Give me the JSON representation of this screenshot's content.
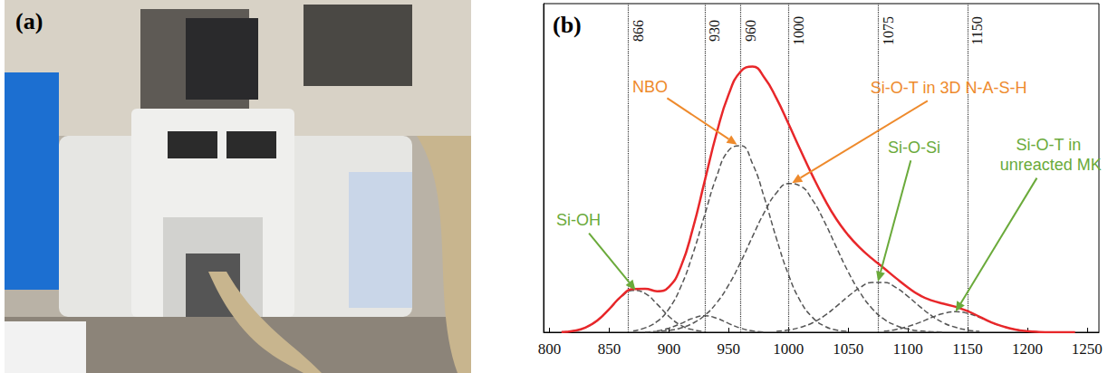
{
  "photo_panel": {
    "label": "(a)"
  },
  "chart_data": {
    "type": "line",
    "panel_label": "(b)",
    "xlim": [
      795,
      1260
    ],
    "xticks": [
      800,
      850,
      900,
      950,
      1000,
      1050,
      1100,
      1150,
      1200,
      1250
    ],
    "ylim": [
      0,
      1.2
    ],
    "tick_labels": "x",
    "grid": false,
    "markers": [
      866,
      930,
      960,
      1000,
      1075,
      1150
    ],
    "series": [
      {
        "type": "line",
        "color": "#e8272a",
        "line_style": "solid",
        "x": [
          810,
          820,
          830,
          840,
          850,
          860,
          870,
          880,
          890,
          900,
          910,
          920,
          930,
          940,
          950,
          960,
          970,
          980,
          990,
          1000,
          1010,
          1020,
          1030,
          1040,
          1050,
          1060,
          1070,
          1080,
          1090,
          1100,
          1110,
          1120,
          1130,
          1140,
          1150,
          1160,
          1170,
          1180,
          1190,
          1200,
          1210,
          1220,
          1230,
          1240
        ],
        "values": [
          0.001,
          0.005,
          0.017,
          0.043,
          0.085,
          0.131,
          0.158,
          0.159,
          0.15,
          0.166,
          0.24,
          0.379,
          0.554,
          0.729,
          0.869,
          0.952,
          0.97,
          0.929,
          0.854,
          0.762,
          0.666,
          0.573,
          0.488,
          0.414,
          0.355,
          0.308,
          0.269,
          0.234,
          0.198,
          0.164,
          0.135,
          0.116,
          0.104,
          0.093,
          0.077,
          0.057,
          0.036,
          0.021,
          0.01,
          0.004,
          0.001,
          0,
          0,
          0
        ]
      },
      {
        "type": "line",
        "color": "#555555",
        "line_style": "dashed",
        "x": [
          810,
          820,
          830,
          840,
          850,
          860,
          870,
          880,
          890,
          900,
          910,
          920,
          930
        ],
        "values": [
          0.001,
          0.005,
          0.017,
          0.043,
          0.084,
          0.129,
          0.153,
          0.142,
          0.103,
          0.058,
          0.025,
          0.009,
          0.002
        ]
      },
      {
        "type": "line",
        "color": "#555555",
        "line_style": "dashed",
        "x": [
          890,
          900,
          910,
          920,
          930,
          940,
          950,
          960,
          970,
          980
        ],
        "values": [
          0.005,
          0.015,
          0.032,
          0.051,
          0.06,
          0.051,
          0.032,
          0.015,
          0.005,
          0.001
        ]
      },
      {
        "type": "line",
        "color": "#555555",
        "line_style": "dashed",
        "x": [
          870,
          880,
          890,
          900,
          910,
          920,
          930,
          940,
          950,
          960,
          970,
          980,
          990,
          1000,
          1010,
          1020,
          1030,
          1040,
          1050
        ],
        "values": [
          0.005,
          0.016,
          0.039,
          0.086,
          0.167,
          0.286,
          0.43,
          0.57,
          0.664,
          0.681,
          0.615,
          0.489,
          0.342,
          0.211,
          0.114,
          0.055,
          0.023,
          0.008,
          0.003
        ]
      },
      {
        "type": "line",
        "color": "#555555",
        "line_style": "dashed",
        "x": [
          880,
          890,
          900,
          910,
          920,
          930,
          940,
          950,
          960,
          970,
          980,
          990,
          1000,
          1010,
          1020,
          1030,
          1040,
          1050,
          1060,
          1070,
          1080,
          1090,
          1100,
          1110,
          1120,
          1130
        ],
        "values": [
          0.001,
          0.003,
          0.007,
          0.016,
          0.033,
          0.062,
          0.108,
          0.173,
          0.256,
          0.35,
          0.439,
          0.509,
          0.543,
          0.534,
          0.484,
          0.405,
          0.312,
          0.221,
          0.145,
          0.087,
          0.048,
          0.025,
          0.012,
          0.005,
          0.002,
          0.001
        ]
      },
      {
        "type": "line",
        "color": "#555555",
        "line_style": "dashed",
        "x": [
          990,
          1000,
          1010,
          1020,
          1030,
          1040,
          1050,
          1060,
          1070,
          1080,
          1090,
          1100,
          1110,
          1120,
          1130,
          1140,
          1150,
          1160
        ],
        "values": [
          0.003,
          0.008,
          0.018,
          0.034,
          0.06,
          0.094,
          0.131,
          0.163,
          0.182,
          0.182,
          0.163,
          0.131,
          0.094,
          0.06,
          0.034,
          0.018,
          0.008,
          0.003
        ]
      },
      {
        "type": "line",
        "color": "#555555",
        "line_style": "dashed",
        "x": [
          1080,
          1090,
          1100,
          1110,
          1120,
          1130,
          1140,
          1150,
          1160,
          1170,
          1180,
          1190,
          1200,
          1210
        ],
        "values": [
          0.004,
          0.01,
          0.021,
          0.036,
          0.054,
          0.069,
          0.075,
          0.069,
          0.054,
          0.036,
          0.021,
          0.01,
          0.004,
          0.001
        ]
      }
    ],
    "annotations": [
      {
        "text": "Si-OH",
        "color": "#6aaa3a",
        "x": 872,
        "y": 0.154
      },
      {
        "text": "NBO",
        "color": "#ee8a2c",
        "x": 957,
        "y": 0.685
      },
      {
        "text": "Si-O-T in 3D N-A-S-H",
        "color": "#ee8a2c",
        "x": 1003,
        "y": 0.545
      },
      {
        "text": "Si-O-Si",
        "color": "#6aaa3a",
        "x": 1075,
        "y": 0.185
      },
      {
        "text": "Si-O-T in unreacted MK",
        "color": "#6aaa3a",
        "x": 1140,
        "y": 0.075
      }
    ]
  }
}
